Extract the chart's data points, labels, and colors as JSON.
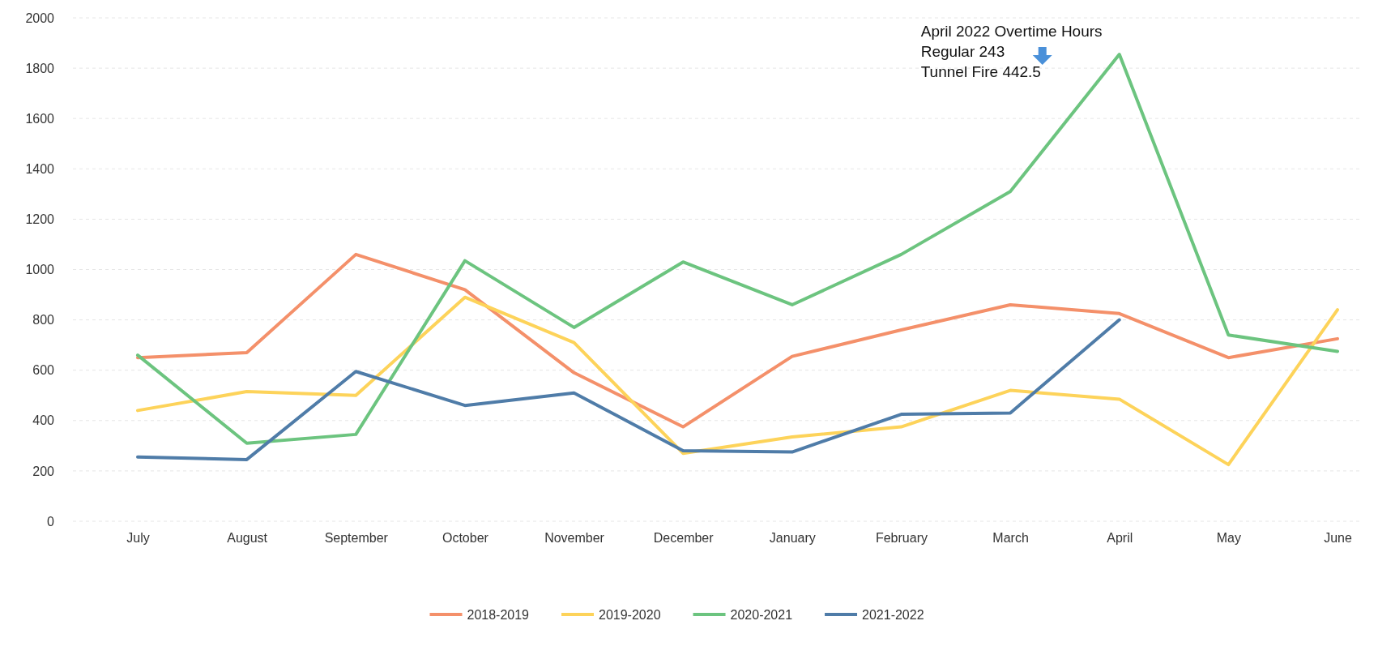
{
  "chart_data": {
    "type": "line",
    "categories": [
      "July",
      "August",
      "September",
      "October",
      "November",
      "December",
      "January",
      "February",
      "March",
      "April",
      "May",
      "June"
    ],
    "series": [
      {
        "name": "2018-2019",
        "color": "#f4906a",
        "values": [
          650,
          670,
          1060,
          920,
          590,
          375,
          655,
          760,
          860,
          825,
          650,
          725
        ]
      },
      {
        "name": "2019-2020",
        "color": "#fdd35a",
        "values": [
          440,
          515,
          500,
          890,
          710,
          270,
          335,
          375,
          520,
          485,
          225,
          840
        ]
      },
      {
        "name": "2020-2021",
        "color": "#6cc47f",
        "values": [
          660,
          310,
          345,
          1035,
          770,
          1030,
          860,
          1060,
          1310,
          1855,
          740,
          675
        ]
      },
      {
        "name": "2021-2022",
        "color": "#4f7ca8",
        "values": [
          255,
          245,
          595,
          460,
          510,
          280,
          275,
          425,
          430,
          800,
          null,
          null
        ]
      }
    ],
    "ylim": [
      0,
      2000
    ],
    "yticks": [
      0,
      200,
      400,
      600,
      800,
      1000,
      1200,
      1400,
      1600,
      1800,
      2000
    ],
    "grid": "y",
    "legend": "bottom",
    "marker": "none",
    "line_style": "solid",
    "annotations": [
      "April 2022 Overtime Hours",
      "Regular 243",
      "Tunnel Fire  442.5"
    ]
  }
}
